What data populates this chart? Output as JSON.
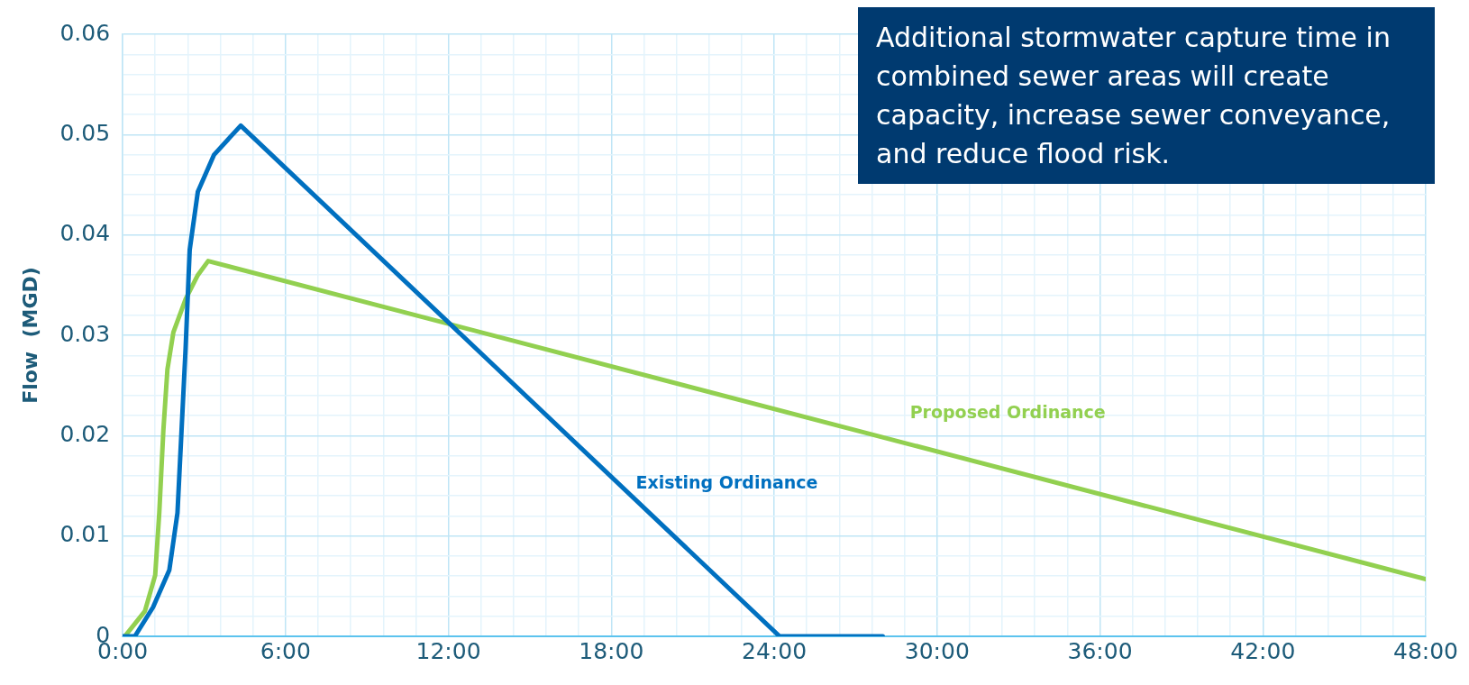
{
  "chart_data": {
    "type": "line",
    "ylabel": "Flow  (MGD)",
    "xlim": [
      0,
      48
    ],
    "ylim": [
      0,
      0.06
    ],
    "xticks": [
      {
        "value": 0,
        "label": "0:00"
      },
      {
        "value": 1.2,
        "label": null
      },
      {
        "value": 2.4,
        "label": null
      },
      {
        "value": 3.6,
        "label": null
      },
      {
        "value": 4.8,
        "label": null
      },
      {
        "value": 6,
        "label": "6:00"
      },
      {
        "value": 7.2,
        "label": null
      },
      {
        "value": 8.4,
        "label": null
      },
      {
        "value": 9.6,
        "label": null
      },
      {
        "value": 10.8,
        "label": null
      },
      {
        "value": 12,
        "label": "12:00"
      },
      {
        "value": 13.2,
        "label": null
      },
      {
        "value": 14.4,
        "label": null
      },
      {
        "value": 15.6,
        "label": null
      },
      {
        "value": 16.8,
        "label": null
      },
      {
        "value": 18,
        "label": "18:00"
      },
      {
        "value": 19.2,
        "label": null
      },
      {
        "value": 20.4,
        "label": null
      },
      {
        "value": 21.6,
        "label": null
      },
      {
        "value": 22.8,
        "label": null
      },
      {
        "value": 24,
        "label": "24:00"
      },
      {
        "value": 25.2,
        "label": null
      },
      {
        "value": 26.4,
        "label": null
      },
      {
        "value": 27.6,
        "label": null
      },
      {
        "value": 28.8,
        "label": null
      },
      {
        "value": 30,
        "label": "30:00"
      },
      {
        "value": 31.2,
        "label": null
      },
      {
        "value": 32.4,
        "label": null
      },
      {
        "value": 33.6,
        "label": null
      },
      {
        "value": 34.8,
        "label": null
      },
      {
        "value": 36,
        "label": "36:00"
      },
      {
        "value": 37.2,
        "label": null
      },
      {
        "value": 38.4,
        "label": null
      },
      {
        "value": 39.6,
        "label": null
      },
      {
        "value": 40.8,
        "label": null
      },
      {
        "value": 42,
        "label": "42:00"
      },
      {
        "value": 43.2,
        "label": null
      },
      {
        "value": 44.4,
        "label": null
      },
      {
        "value": 45.6,
        "label": null
      },
      {
        "value": 46.8,
        "label": null
      },
      {
        "value": 48,
        "label": "48:00"
      }
    ],
    "yticks": [
      0,
      {
        "value": 0.002,
        "label": null
      },
      {
        "value": 0.004,
        "label": null
      },
      {
        "value": 0.006,
        "label": null
      },
      {
        "value": 0.008,
        "label": null
      },
      0.01,
      {
        "value": 0.012,
        "label": null
      },
      {
        "value": 0.014,
        "label": null
      },
      {
        "value": 0.016,
        "label": null
      },
      {
        "value": 0.018,
        "label": null
      },
      0.02,
      {
        "value": 0.022,
        "label": null
      },
      {
        "value": 0.024,
        "label": null
      },
      {
        "value": 0.026,
        "label": null
      },
      {
        "value": 0.028,
        "label": null
      },
      0.03,
      {
        "value": 0.032,
        "label": null
      },
      {
        "value": 0.034,
        "label": null
      },
      {
        "value": 0.036,
        "label": null
      },
      {
        "value": 0.038,
        "label": null
      },
      0.04,
      {
        "value": 0.042,
        "label": null
      },
      {
        "value": 0.044,
        "label": null
      },
      {
        "value": 0.046,
        "label": null
      },
      {
        "value": 0.048,
        "label": null
      },
      0.05,
      {
        "value": 0.052,
        "label": null
      },
      {
        "value": 0.054,
        "label": null
      },
      {
        "value": 0.056,
        "label": null
      },
      {
        "value": 0.058,
        "label": null
      },
      0.06
    ],
    "grid": true,
    "legend": false,
    "marker": "none",
    "line_style": "solid",
    "series": [
      {
        "name": "Existing Ordinance",
        "color": "#0070c0",
        "x": [
          0,
          0.45,
          1.12,
          1.72,
          2.02,
          2.17,
          2.32,
          2.47,
          2.77,
          3.37,
          4.35,
          24.2,
          28
        ],
        "values": [
          0,
          0,
          0.0029,
          0.0066,
          0.0123,
          0.0205,
          0.0287,
          0.0385,
          0.0443,
          0.048,
          0.0509,
          0,
          0
        ]
      },
      {
        "name": "Proposed Ordinance",
        "color": "#92d050",
        "x": [
          0.08,
          0.82,
          1.2,
          1.35,
          1.5,
          1.65,
          1.87,
          2.32,
          2.77,
          3.15,
          48
        ],
        "values": [
          0,
          0.0025,
          0.0061,
          0.0123,
          0.0205,
          0.0266,
          0.0303,
          0.0336,
          0.036,
          0.0374,
          0.0057
        ]
      }
    ],
    "annotations": [
      "Additional stormwater capture time in combined sewer areas will create capacity, increase sewer conveyance, and reduce flood risk."
    ]
  }
}
